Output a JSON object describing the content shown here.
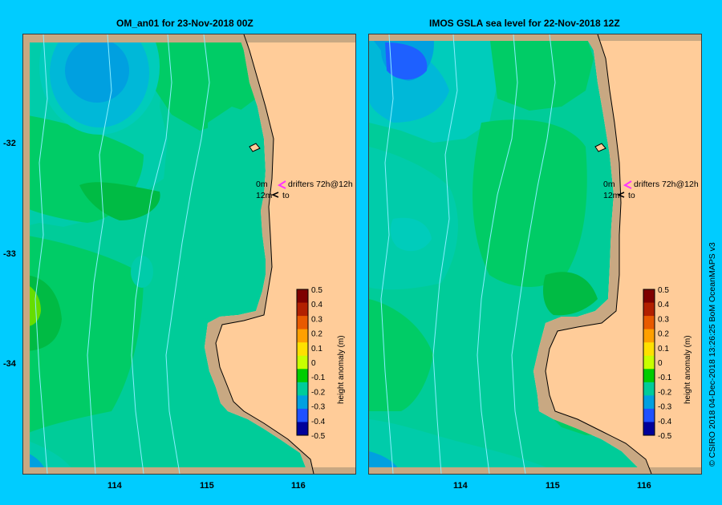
{
  "panels": [
    {
      "title": "OM_an01  for 23-Nov-2018 00Z",
      "drifters_line1": "drifters 72h@12h",
      "drifters_line2": "to",
      "label_0m": "0m",
      "label_12m": "12m"
    },
    {
      "title": "IMOS GSLA sea level  for 22-Nov-2018 12Z",
      "drifters_line1": "drifters 72h@12h",
      "drifters_line2": "to",
      "label_0m": "0m",
      "label_12m": "12m"
    }
  ],
  "lat_ticks": [
    "-32",
    "-33",
    "-34"
  ],
  "lon_ticks": [
    "114",
    "115",
    "116"
  ],
  "colorbar": {
    "label": "height anomaly (m)",
    "ticks": [
      "0.5",
      "0.4",
      "0.3",
      "0.2",
      "0.1",
      "0",
      "-0.1",
      "-0.2",
      "-0.3",
      "-0.4",
      "-0.5"
    ],
    "colors": [
      "#7f0000",
      "#b22000",
      "#e85a00",
      "#ffa000",
      "#ffe000",
      "#c8ff00",
      "#00cc00",
      "#00cc99",
      "#00a0e0",
      "#1e50ff",
      "#00009a"
    ]
  },
  "credit": "© CSIRO 2018   04-Dec-2018 13:26:25 BoM OceanMAPS v3",
  "colors": {
    "background": "#00ccff",
    "land": "#ffcc99",
    "coast": "#c8a882",
    "drifter": "#ff33ff"
  }
}
